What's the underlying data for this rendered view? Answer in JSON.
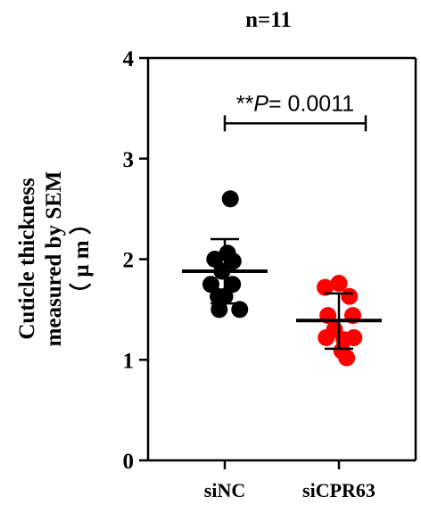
{
  "chart_data": {
    "type": "scatter",
    "title": "n=11",
    "ylabel_lines": [
      "Cuticle thickness",
      "measured by SEM",
      "（ μ m ）"
    ],
    "xlabel": "",
    "categories": [
      "siNC",
      "siCPR63"
    ],
    "ylim": [
      0,
      4
    ],
    "yticks": [
      "0",
      "1",
      "2",
      "3",
      "4"
    ],
    "grid": false,
    "legend": "none",
    "series": [
      {
        "color": "#000000",
        "points": [
          [
            0.1,
            2.6
          ],
          [
            -0.18,
            2.0
          ],
          [
            0.05,
            2.06
          ],
          [
            0.15,
            1.98
          ],
          [
            -0.05,
            1.88
          ],
          [
            0.14,
            1.75
          ],
          [
            -0.25,
            1.75
          ],
          [
            -0.12,
            1.63
          ],
          [
            -0.1,
            1.5
          ],
          [
            0.27,
            1.5
          ],
          [
            0.0,
            1.63
          ]
        ],
        "mean": 1.88,
        "sd_upper": 2.2,
        "sd_lower": 1.56
      },
      {
        "color": "#ff0000",
        "points": [
          [
            -0.25,
            1.72
          ],
          [
            0.0,
            1.76
          ],
          [
            0.19,
            1.63
          ],
          [
            -0.2,
            1.44
          ],
          [
            0.25,
            1.44
          ],
          [
            -0.08,
            1.3
          ],
          [
            -0.23,
            1.22
          ],
          [
            0.09,
            1.2
          ],
          [
            0.27,
            1.22
          ],
          [
            0.05,
            1.09
          ],
          [
            0.14,
            1.02
          ]
        ],
        "mean": 1.39,
        "sd_upper": 1.66,
        "sd_lower": 1.11
      }
    ],
    "annotation": {
      "stars": "**",
      "p_italic": "P",
      "p_rest": "= 0.0011",
      "bracket_y": 3.35
    }
  }
}
